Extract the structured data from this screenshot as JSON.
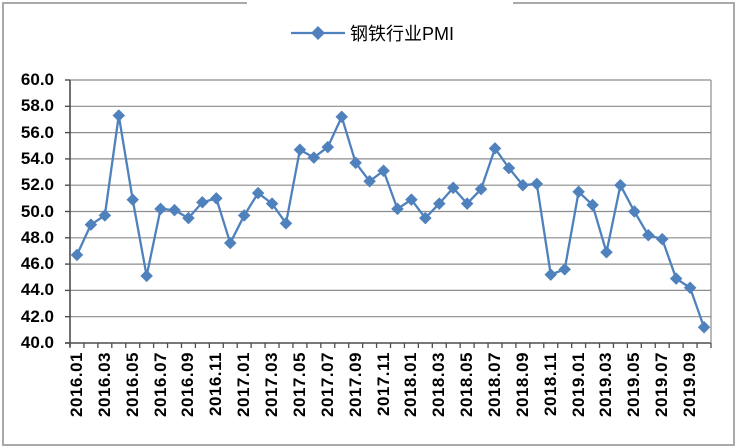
{
  "legend": {
    "label": "钢铁行业PMI"
  },
  "colors": {
    "series_blue": "#4F81BD",
    "gridline": "#8c8c8c",
    "axis": "#4d4d4d",
    "frame": "#a9a9a9",
    "text": "#000000",
    "background": "#ffffff"
  },
  "chart_data": {
    "type": "line",
    "title": "",
    "legend_position": "top",
    "grid": true,
    "marker": "diamond",
    "line_color": "#4F81BD",
    "categories": [
      "2016.01",
      "2016.02",
      "2016.03",
      "2016.04",
      "2016.05",
      "2016.06",
      "2016.07",
      "2016.08",
      "2016.09",
      "2016.10",
      "2016.11",
      "2016.12",
      "2017.01",
      "2017.02",
      "2017.03",
      "2017.04",
      "2017.05",
      "2017.06",
      "2017.07",
      "2017.08",
      "2017.09",
      "2017.10",
      "2017.11",
      "2017.12",
      "2018.01",
      "2018.02",
      "2018.03",
      "2018.04",
      "2018.05",
      "2018.06",
      "2018.07",
      "2018.08",
      "2018.09",
      "2018.10",
      "2018.11",
      "2018.12",
      "2019.01",
      "2019.02",
      "2019.03",
      "2019.04",
      "2019.05",
      "2019.06",
      "2019.07",
      "2019.08",
      "2019.09",
      "2019.10"
    ],
    "series": [
      {
        "name": "钢铁行业PMI",
        "values": [
          46.7,
          49.0,
          49.7,
          57.3,
          50.9,
          45.1,
          50.2,
          50.1,
          49.5,
          50.7,
          51.0,
          47.6,
          49.7,
          51.4,
          50.6,
          49.1,
          54.7,
          54.1,
          54.9,
          57.2,
          53.7,
          52.3,
          53.1,
          50.2,
          50.9,
          49.5,
          50.6,
          51.8,
          50.6,
          51.7,
          54.8,
          53.3,
          52.0,
          52.1,
          45.2,
          45.6,
          51.5,
          50.5,
          46.9,
          52.0,
          50.0,
          48.2,
          47.9,
          44.9,
          44.2,
          41.2
        ]
      }
    ],
    "x_axis": {
      "tick_labels_shown": [
        "2016.01",
        "2016.03",
        "2016.05",
        "2016.07",
        "2016.09",
        "2016.11",
        "2017.01",
        "2017.03",
        "2017.05",
        "2017.07",
        "2017.09",
        "2017.11",
        "2018.01",
        "2018.03",
        "2018.05",
        "2018.07",
        "2018.09",
        "2018.11",
        "2019.01",
        "2019.03",
        "2019.05",
        "2019.07",
        "2019.09"
      ],
      "label_every_n_months": 2,
      "label_rotation_deg": 90
    },
    "y_axis": {
      "min": 40.0,
      "max": 60.0,
      "step": 2.0,
      "tick_labels": [
        "60.0",
        "58.0",
        "56.0",
        "54.0",
        "52.0",
        "50.0",
        "48.0",
        "46.0",
        "44.0",
        "42.0",
        "40.0"
      ]
    },
    "ylim": [
      40,
      60
    ]
  }
}
